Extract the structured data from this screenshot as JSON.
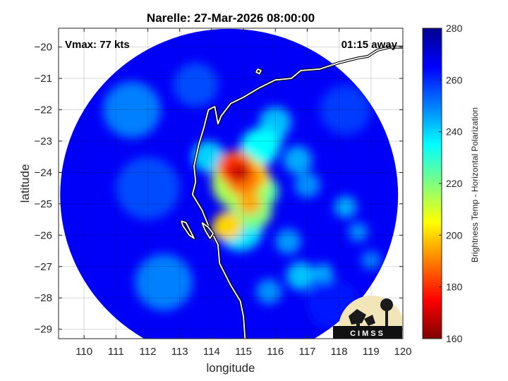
{
  "chart_data": {
    "type": "heatmap",
    "title": "Narelle: 27-Mar-2026 08:00:00",
    "xlabel": "longitude",
    "ylabel": "latitude",
    "xlim": [
      109.2,
      120.0
    ],
    "ylim": [
      -29.3,
      -19.4
    ],
    "xticks": [
      110,
      111,
      112,
      113,
      114,
      115,
      116,
      117,
      118,
      119,
      120
    ],
    "yticks": [
      -20,
      -21,
      -22,
      -23,
      -24,
      -25,
      -26,
      -27,
      -28,
      -29
    ],
    "grid": true,
    "swath": {
      "center_lon": 114.55,
      "center_lat": -24.72,
      "radius_deg": 5.3
    },
    "storm_center": {
      "lon": 114.9,
      "lat": -24.0
    },
    "colorbar": {
      "label": "Brightness Temp - Horizontal Polarization",
      "min": 160,
      "max": 280,
      "ticks": [
        160,
        180,
        200,
        220,
        240,
        260,
        280
      ],
      "colormap": "jet",
      "colors": [
        "#7f0000",
        "#ff0000",
        "#ff7f00",
        "#ffff00",
        "#7fff7f",
        "#00ffff",
        "#007fff",
        "#0000ff",
        "#00008f"
      ]
    },
    "annotations": {
      "vmax": "Vmax: 77 kts",
      "time_away": "01:15 away"
    },
    "coastline": [
      [
        120.0,
        -20.0
      ],
      [
        119.6,
        -20.0
      ],
      [
        119.2,
        -20.1
      ],
      [
        118.9,
        -20.3
      ],
      [
        118.6,
        -20.35
      ],
      [
        118.0,
        -20.5
      ],
      [
        117.4,
        -20.7
      ],
      [
        116.8,
        -20.75
      ],
      [
        116.5,
        -21.0
      ],
      [
        116.0,
        -21.05
      ],
      [
        115.5,
        -21.3
      ],
      [
        115.0,
        -21.6
      ],
      [
        114.6,
        -21.8
      ],
      [
        114.3,
        -22.2
      ],
      [
        114.2,
        -22.45
      ],
      [
        114.1,
        -21.9
      ],
      [
        113.9,
        -22.0
      ],
      [
        113.75,
        -22.6
      ],
      [
        113.6,
        -23.1
      ],
      [
        113.45,
        -23.8
      ],
      [
        113.5,
        -24.3
      ],
      [
        113.4,
        -24.7
      ],
      [
        113.7,
        -25.2
      ],
      [
        113.9,
        -25.7
      ],
      [
        114.2,
        -26.3
      ],
      [
        114.25,
        -26.9
      ],
      [
        114.6,
        -27.6
      ],
      [
        114.9,
        -28.1
      ],
      [
        115.0,
        -28.6
      ],
      [
        115.05,
        -29.3
      ]
    ],
    "islands": [
      [
        [
          113.05,
          -25.55
        ],
        [
          113.2,
          -25.6
        ],
        [
          113.35,
          -25.9
        ],
        [
          113.45,
          -26.1
        ],
        [
          113.3,
          -26.0
        ],
        [
          113.1,
          -25.7
        ],
        [
          113.05,
          -25.55
        ]
      ],
      [
        [
          113.7,
          -25.6
        ],
        [
          113.9,
          -25.75
        ],
        [
          114.05,
          -25.95
        ],
        [
          113.95,
          -26.1
        ],
        [
          113.8,
          -25.85
        ],
        [
          113.7,
          -25.6
        ]
      ],
      [
        [
          115.45,
          -20.7
        ],
        [
          115.55,
          -20.75
        ],
        [
          115.5,
          -20.85
        ],
        [
          115.4,
          -20.8
        ],
        [
          115.45,
          -20.7
        ]
      ]
    ],
    "features": [
      {
        "lon": 114.9,
        "lat": -24.0,
        "r": 0.3,
        "bt": 168
      },
      {
        "lon": 114.75,
        "lat": -23.85,
        "r": 0.55,
        "bt": 185
      },
      {
        "lon": 114.6,
        "lat": -23.9,
        "r": 0.35,
        "bt": 180
      },
      {
        "lon": 115.0,
        "lat": -24.2,
        "r": 0.55,
        "bt": 190
      },
      {
        "lon": 115.4,
        "lat": -24.1,
        "r": 0.4,
        "bt": 200
      },
      {
        "lon": 114.9,
        "lat": -24.3,
        "r": 0.9,
        "bt": 215
      },
      {
        "lon": 115.2,
        "lat": -25.0,
        "r": 0.35,
        "bt": 195
      },
      {
        "lon": 114.5,
        "lat": -25.7,
        "r": 0.45,
        "bt": 200
      },
      {
        "lon": 114.3,
        "lat": -25.8,
        "r": 0.3,
        "bt": 205
      },
      {
        "lon": 115.3,
        "lat": -25.2,
        "r": 0.6,
        "bt": 220
      },
      {
        "lon": 115.6,
        "lat": -24.6,
        "r": 0.5,
        "bt": 225
      },
      {
        "lon": 115.5,
        "lat": -23.2,
        "r": 0.6,
        "bt": 235
      },
      {
        "lon": 115.8,
        "lat": -22.9,
        "r": 0.45,
        "bt": 240
      },
      {
        "lon": 116.0,
        "lat": -22.4,
        "r": 0.5,
        "bt": 243
      },
      {
        "lon": 113.9,
        "lat": -23.5,
        "r": 0.5,
        "bt": 240
      },
      {
        "lon": 114.9,
        "lat": -25.8,
        "r": 0.7,
        "bt": 238
      },
      {
        "lon": 116.7,
        "lat": -23.6,
        "r": 0.45,
        "bt": 245
      },
      {
        "lon": 117.0,
        "lat": -24.4,
        "r": 0.4,
        "bt": 248
      },
      {
        "lon": 116.4,
        "lat": -26.2,
        "r": 0.4,
        "bt": 247
      },
      {
        "lon": 116.8,
        "lat": -27.3,
        "r": 0.45,
        "bt": 242
      },
      {
        "lon": 117.5,
        "lat": -27.2,
        "r": 0.3,
        "bt": 245
      },
      {
        "lon": 118.2,
        "lat": -25.1,
        "r": 0.35,
        "bt": 245
      },
      {
        "lon": 118.6,
        "lat": -25.9,
        "r": 0.3,
        "bt": 248
      },
      {
        "lon": 119.0,
        "lat": -26.8,
        "r": 0.3,
        "bt": 250
      },
      {
        "lon": 115.8,
        "lat": -27.8,
        "r": 0.4,
        "bt": 248
      },
      {
        "lon": 111.5,
        "lat": -22.0,
        "r": 0.9,
        "bt": 250
      },
      {
        "lon": 112.5,
        "lat": -27.5,
        "r": 0.9,
        "bt": 250
      },
      {
        "lon": 112.0,
        "lat": -24.5,
        "r": 1.0,
        "bt": 256
      },
      {
        "lon": 113.5,
        "lat": -21.2,
        "r": 0.7,
        "bt": 256
      },
      {
        "lon": 117.8,
        "lat": -28.2,
        "r": 0.8,
        "bt": 262
      },
      {
        "lon": 118.2,
        "lat": -22.0,
        "r": 0.8,
        "bt": 258
      }
    ],
    "logo": {
      "text": "CIMSS"
    }
  }
}
